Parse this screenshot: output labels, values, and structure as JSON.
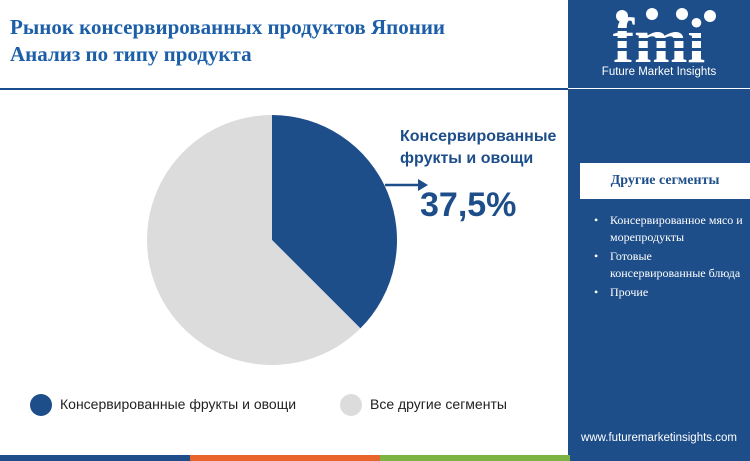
{
  "header": {
    "title_line1": "Рынок консервированных продуктов Японии",
    "title_line2": "Анализ  по типу продукта"
  },
  "brand": {
    "logo_text": "fmi",
    "name": "Future Market Insights",
    "website": "www.futuremarketinsights.com"
  },
  "sidebar": {
    "segments_title": "Другие сегменты",
    "segments": [
      "Консервированное мясо и морепродукты",
      "Готовые консервированные блюда",
      "Прочие"
    ]
  },
  "callout": {
    "label": "Консервированные фрукты и овощи",
    "value": "37,5%"
  },
  "colors": {
    "primary": "#1d4e8a",
    "other": "#dcdcdc",
    "title": "#1c5fa8",
    "bar": [
      "#1d4e8a",
      "#e8642c",
      "#7cb342",
      "#1d4e8a"
    ]
  },
  "chart_data": {
    "type": "pie",
    "labels": [
      "Консервированные фрукты и овощи",
      "Все другие сегменты"
    ],
    "values": [
      37.5,
      62.5
    ],
    "colors": [
      "#1d4e8a",
      "#dcdcdc"
    ],
    "start": "12 o'clock, clockwise"
  },
  "legend": [
    {
      "label": "Консервированные фрукты и овощи",
      "color": "#1d4e8a"
    },
    {
      "label": "Все другие сегменты",
      "color": "#dcdcdc"
    }
  ]
}
